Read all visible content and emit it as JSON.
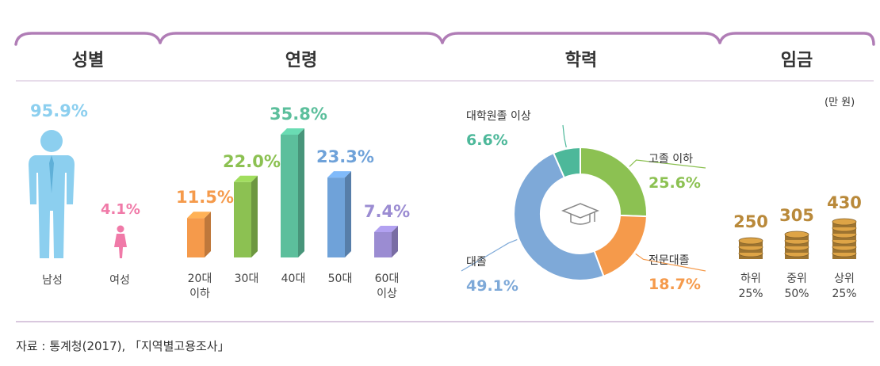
{
  "panels": {
    "gender": "성별",
    "age": "연령",
    "education": "학력",
    "wage": "임금"
  },
  "wage_unit": "(만 원)",
  "source": "자료 : 통계청(2017), 「지역별고용조사」",
  "colors": {
    "male": "#8ccfef",
    "female": "#f07aa8",
    "age": [
      "#f59a4b",
      "#8cc152",
      "#5cbf9c",
      "#6fa2d9",
      "#9b8cd2"
    ],
    "edu": {
      "grad": "#4db89a",
      "highschool": "#8cc152",
      "college": "#f59a4b",
      "university": "#7ea9d8"
    },
    "coins": "#b9893a",
    "frame": "#b07db6"
  },
  "chart_data": [
    {
      "type": "bar",
      "title": "성별",
      "categories": [
        "남성",
        "여성"
      ],
      "values": [
        95.9,
        4.1
      ],
      "labels": [
        "95.9%",
        "4.1%"
      ]
    },
    {
      "type": "bar",
      "title": "연령",
      "categories": [
        "20대 이하",
        "30대",
        "40대",
        "50대",
        "60대 이상"
      ],
      "category_lines": [
        [
          "20대",
          "이하"
        ],
        [
          "30대"
        ],
        [
          "40대"
        ],
        [
          "50대"
        ],
        [
          "60대",
          "이상"
        ]
      ],
      "values": [
        11.5,
        22.0,
        35.8,
        23.3,
        7.4
      ],
      "labels": [
        "11.5%",
        "22.0%",
        "35.8%",
        "23.3%",
        "7.4%"
      ]
    },
    {
      "type": "pie",
      "title": "학력",
      "categories": [
        "고졸 이하",
        "전문대졸",
        "대졸",
        "대학원졸 이상"
      ],
      "values": [
        25.6,
        18.7,
        49.1,
        6.6
      ],
      "labels": [
        "25.6%",
        "18.7%",
        "49.1%",
        "6.6%"
      ]
    },
    {
      "type": "bar",
      "title": "임금",
      "categories": [
        "하위 25%",
        "중위 50%",
        "상위 25%"
      ],
      "category_lines": [
        [
          "하위",
          "25%"
        ],
        [
          "중위",
          "50%"
        ],
        [
          "상위",
          "25%"
        ]
      ],
      "values": [
        250,
        305,
        430
      ],
      "unit": "만 원"
    }
  ]
}
